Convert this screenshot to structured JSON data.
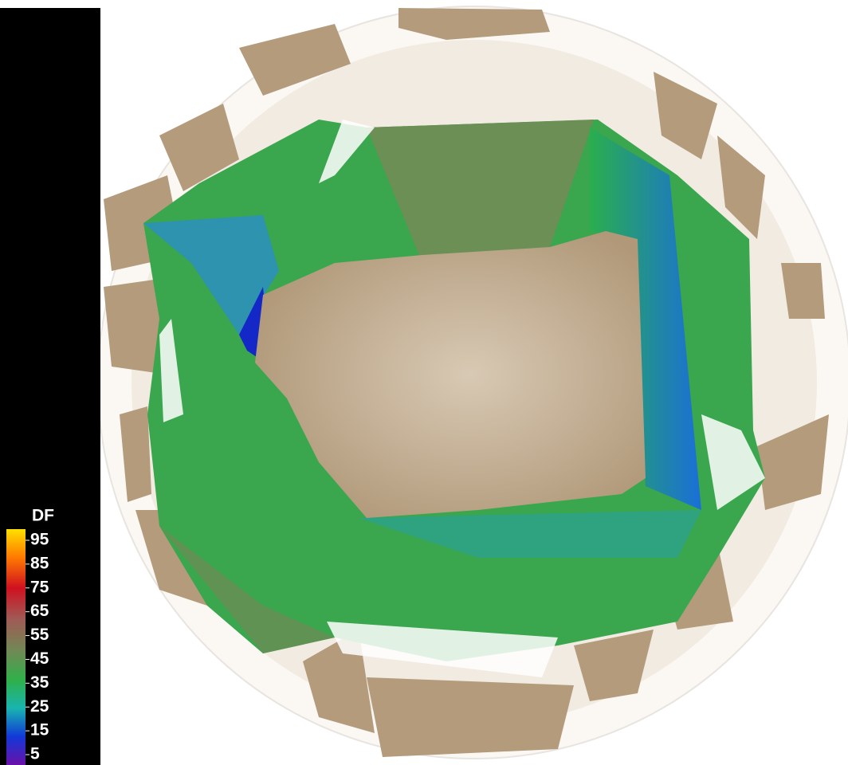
{
  "legend": {
    "title": "DF",
    "ticks": [
      95,
      85,
      75,
      65,
      55,
      45,
      35,
      25,
      15,
      5
    ]
  }
}
